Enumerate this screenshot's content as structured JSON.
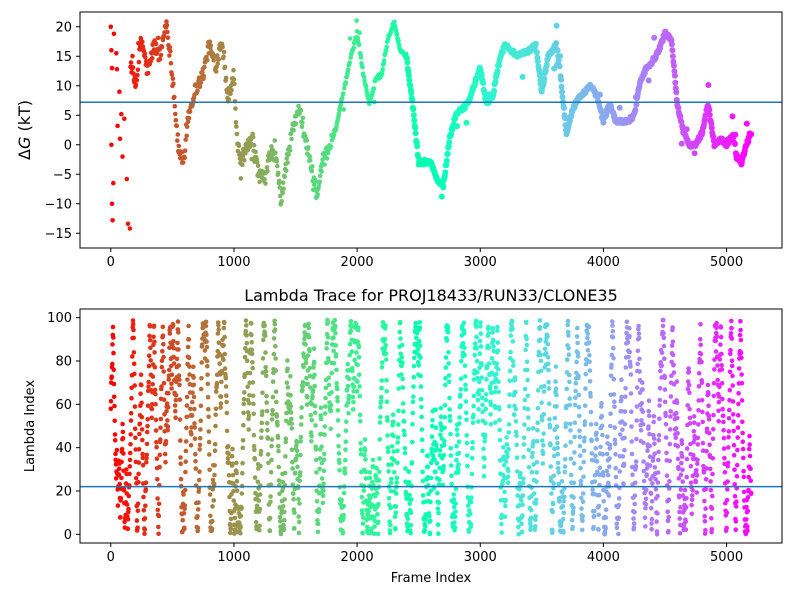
{
  "chart_data": [
    {
      "type": "scatter",
      "title": "",
      "xlabel": "",
      "ylabel": "ΔG (kT)",
      "ylabel_parts": {
        "delta": "Δ",
        "var": "G",
        "unit": " (kT)"
      },
      "xlim": [
        -250,
        5450
      ],
      "ylim": [
        -17.5,
        22.5
      ],
      "xticks": [
        0,
        1000,
        2000,
        3000,
        4000,
        5000
      ],
      "yticks": [
        -15,
        -10,
        -5,
        0,
        5,
        10,
        15,
        20
      ],
      "hline": 7.2,
      "hline_color": "#1f77b4",
      "colormap": "rainbow",
      "color_by": "frame index (red at 0 to violet at end)",
      "n_frames": 5200,
      "trace_keypoints": [
        [
          0,
          20
        ],
        [
          20,
          16
        ],
        [
          40,
          3
        ],
        [
          60,
          -7
        ],
        [
          80,
          18
        ],
        [
          100,
          8
        ],
        [
          120,
          -3
        ],
        [
          140,
          -13
        ],
        [
          160,
          14
        ],
        [
          200,
          10
        ],
        [
          250,
          18
        ],
        [
          300,
          12
        ],
        [
          350,
          17
        ],
        [
          400,
          15
        ],
        [
          450,
          21
        ],
        [
          500,
          12
        ],
        [
          550,
          -1
        ],
        [
          600,
          -3
        ],
        [
          620,
          4
        ],
        [
          680,
          9
        ],
        [
          750,
          12
        ],
        [
          800,
          17
        ],
        [
          850,
          13
        ],
        [
          900,
          18
        ],
        [
          950,
          8
        ],
        [
          1000,
          12
        ],
        [
          1020,
          2
        ],
        [
          1050,
          -3
        ],
        [
          1100,
          -1
        ],
        [
          1150,
          1
        ],
        [
          1200,
          -5
        ],
        [
          1250,
          -6
        ],
        [
          1300,
          -1
        ],
        [
          1350,
          -3
        ],
        [
          1380,
          -10
        ],
        [
          1420,
          -4
        ],
        [
          1480,
          3
        ],
        [
          1530,
          6
        ],
        [
          1580,
          1
        ],
        [
          1620,
          -3
        ],
        [
          1680,
          -9
        ],
        [
          1720,
          -3
        ],
        [
          1780,
          0
        ],
        [
          1830,
          3
        ],
        [
          1900,
          10
        ],
        [
          1950,
          15
        ],
        [
          2000,
          19
        ],
        [
          2050,
          12
        ],
        [
          2100,
          7
        ],
        [
          2150,
          11
        ],
        [
          2200,
          12
        ],
        [
          2250,
          18
        ],
        [
          2300,
          21
        ],
        [
          2350,
          16
        ],
        [
          2400,
          15
        ],
        [
          2450,
          7
        ],
        [
          2500,
          -3
        ],
        [
          2600,
          -3
        ],
        [
          2650,
          -6
        ],
        [
          2700,
          -7
        ],
        [
          2750,
          1
        ],
        [
          2800,
          5
        ],
        [
          2850,
          6
        ],
        [
          2900,
          7
        ],
        [
          2950,
          10
        ],
        [
          3000,
          13
        ],
        [
          3050,
          7
        ],
        [
          3100,
          8
        ],
        [
          3150,
          14
        ],
        [
          3200,
          17
        ],
        [
          3300,
          15
        ],
        [
          3400,
          16
        ],
        [
          3450,
          17
        ],
        [
          3500,
          9
        ],
        [
          3550,
          15
        ],
        [
          3620,
          17
        ],
        [
          3650,
          12
        ],
        [
          3700,
          2
        ],
        [
          3750,
          6
        ],
        [
          3800,
          8
        ],
        [
          3900,
          10
        ],
        [
          3950,
          8
        ],
        [
          4000,
          4
        ],
        [
          4050,
          7
        ],
        [
          4100,
          4
        ],
        [
          4200,
          4
        ],
        [
          4250,
          5
        ],
        [
          4300,
          11
        ],
        [
          4350,
          13
        ],
        [
          4400,
          14
        ],
        [
          4450,
          16
        ],
        [
          4500,
          19
        ],
        [
          4550,
          18
        ],
        [
          4600,
          7
        ],
        [
          4650,
          2
        ],
        [
          4700,
          0
        ],
        [
          4750,
          0
        ],
        [
          4800,
          2
        ],
        [
          4850,
          7
        ],
        [
          4900,
          0
        ],
        [
          4950,
          1
        ],
        [
          5000,
          0
        ],
        [
          5050,
          2
        ],
        [
          5080,
          -2
        ],
        [
          5120,
          -3
        ],
        [
          5160,
          0
        ],
        [
          5200,
          2
        ]
      ],
      "scatter_points": [
        {
          "x": 0,
          "y": 20
        },
        {
          "x": 5,
          "y": 16
        },
        {
          "x": 10,
          "y": 13
        },
        {
          "x": 5,
          "y": 0
        },
        {
          "x": 10,
          "y": -10
        },
        {
          "x": 15,
          "y": -12.8
        },
        {
          "x": 20,
          "y": -6.5
        },
        {
          "x": 25,
          "y": 18.8
        },
        {
          "x": 45,
          "y": 15.5
        },
        {
          "x": 50,
          "y": 12.8
        },
        {
          "x": 55,
          "y": 3.2
        },
        {
          "x": 70,
          "y": 9
        },
        {
          "x": 75,
          "y": 1
        },
        {
          "x": 85,
          "y": 5.2
        },
        {
          "x": 95,
          "y": -2
        },
        {
          "x": 110,
          "y": 4.4
        },
        {
          "x": 130,
          "y": -5.8
        },
        {
          "x": 140,
          "y": -13.4
        },
        {
          "x": 155,
          "y": -14.2
        }
      ]
    },
    {
      "type": "scatter",
      "title": "Lambda Trace for PROJ18433/RUN33/CLONE35",
      "xlabel": "Frame Index",
      "ylabel": "Lambda Index",
      "xlim": [
        -250,
        5450
      ],
      "ylim": [
        -4,
        104
      ],
      "xticks": [
        0,
        1000,
        2000,
        3000,
        4000,
        5000
      ],
      "yticks": [
        0,
        20,
        40,
        60,
        80,
        100
      ],
      "hline": 22,
      "hline_color": "#1f77b4",
      "colormap": "rainbow",
      "color_by": "frame index (red at 0 to violet at end)",
      "n_frames": 5200,
      "lambda_min": 0,
      "lambda_max": 99
    }
  ]
}
